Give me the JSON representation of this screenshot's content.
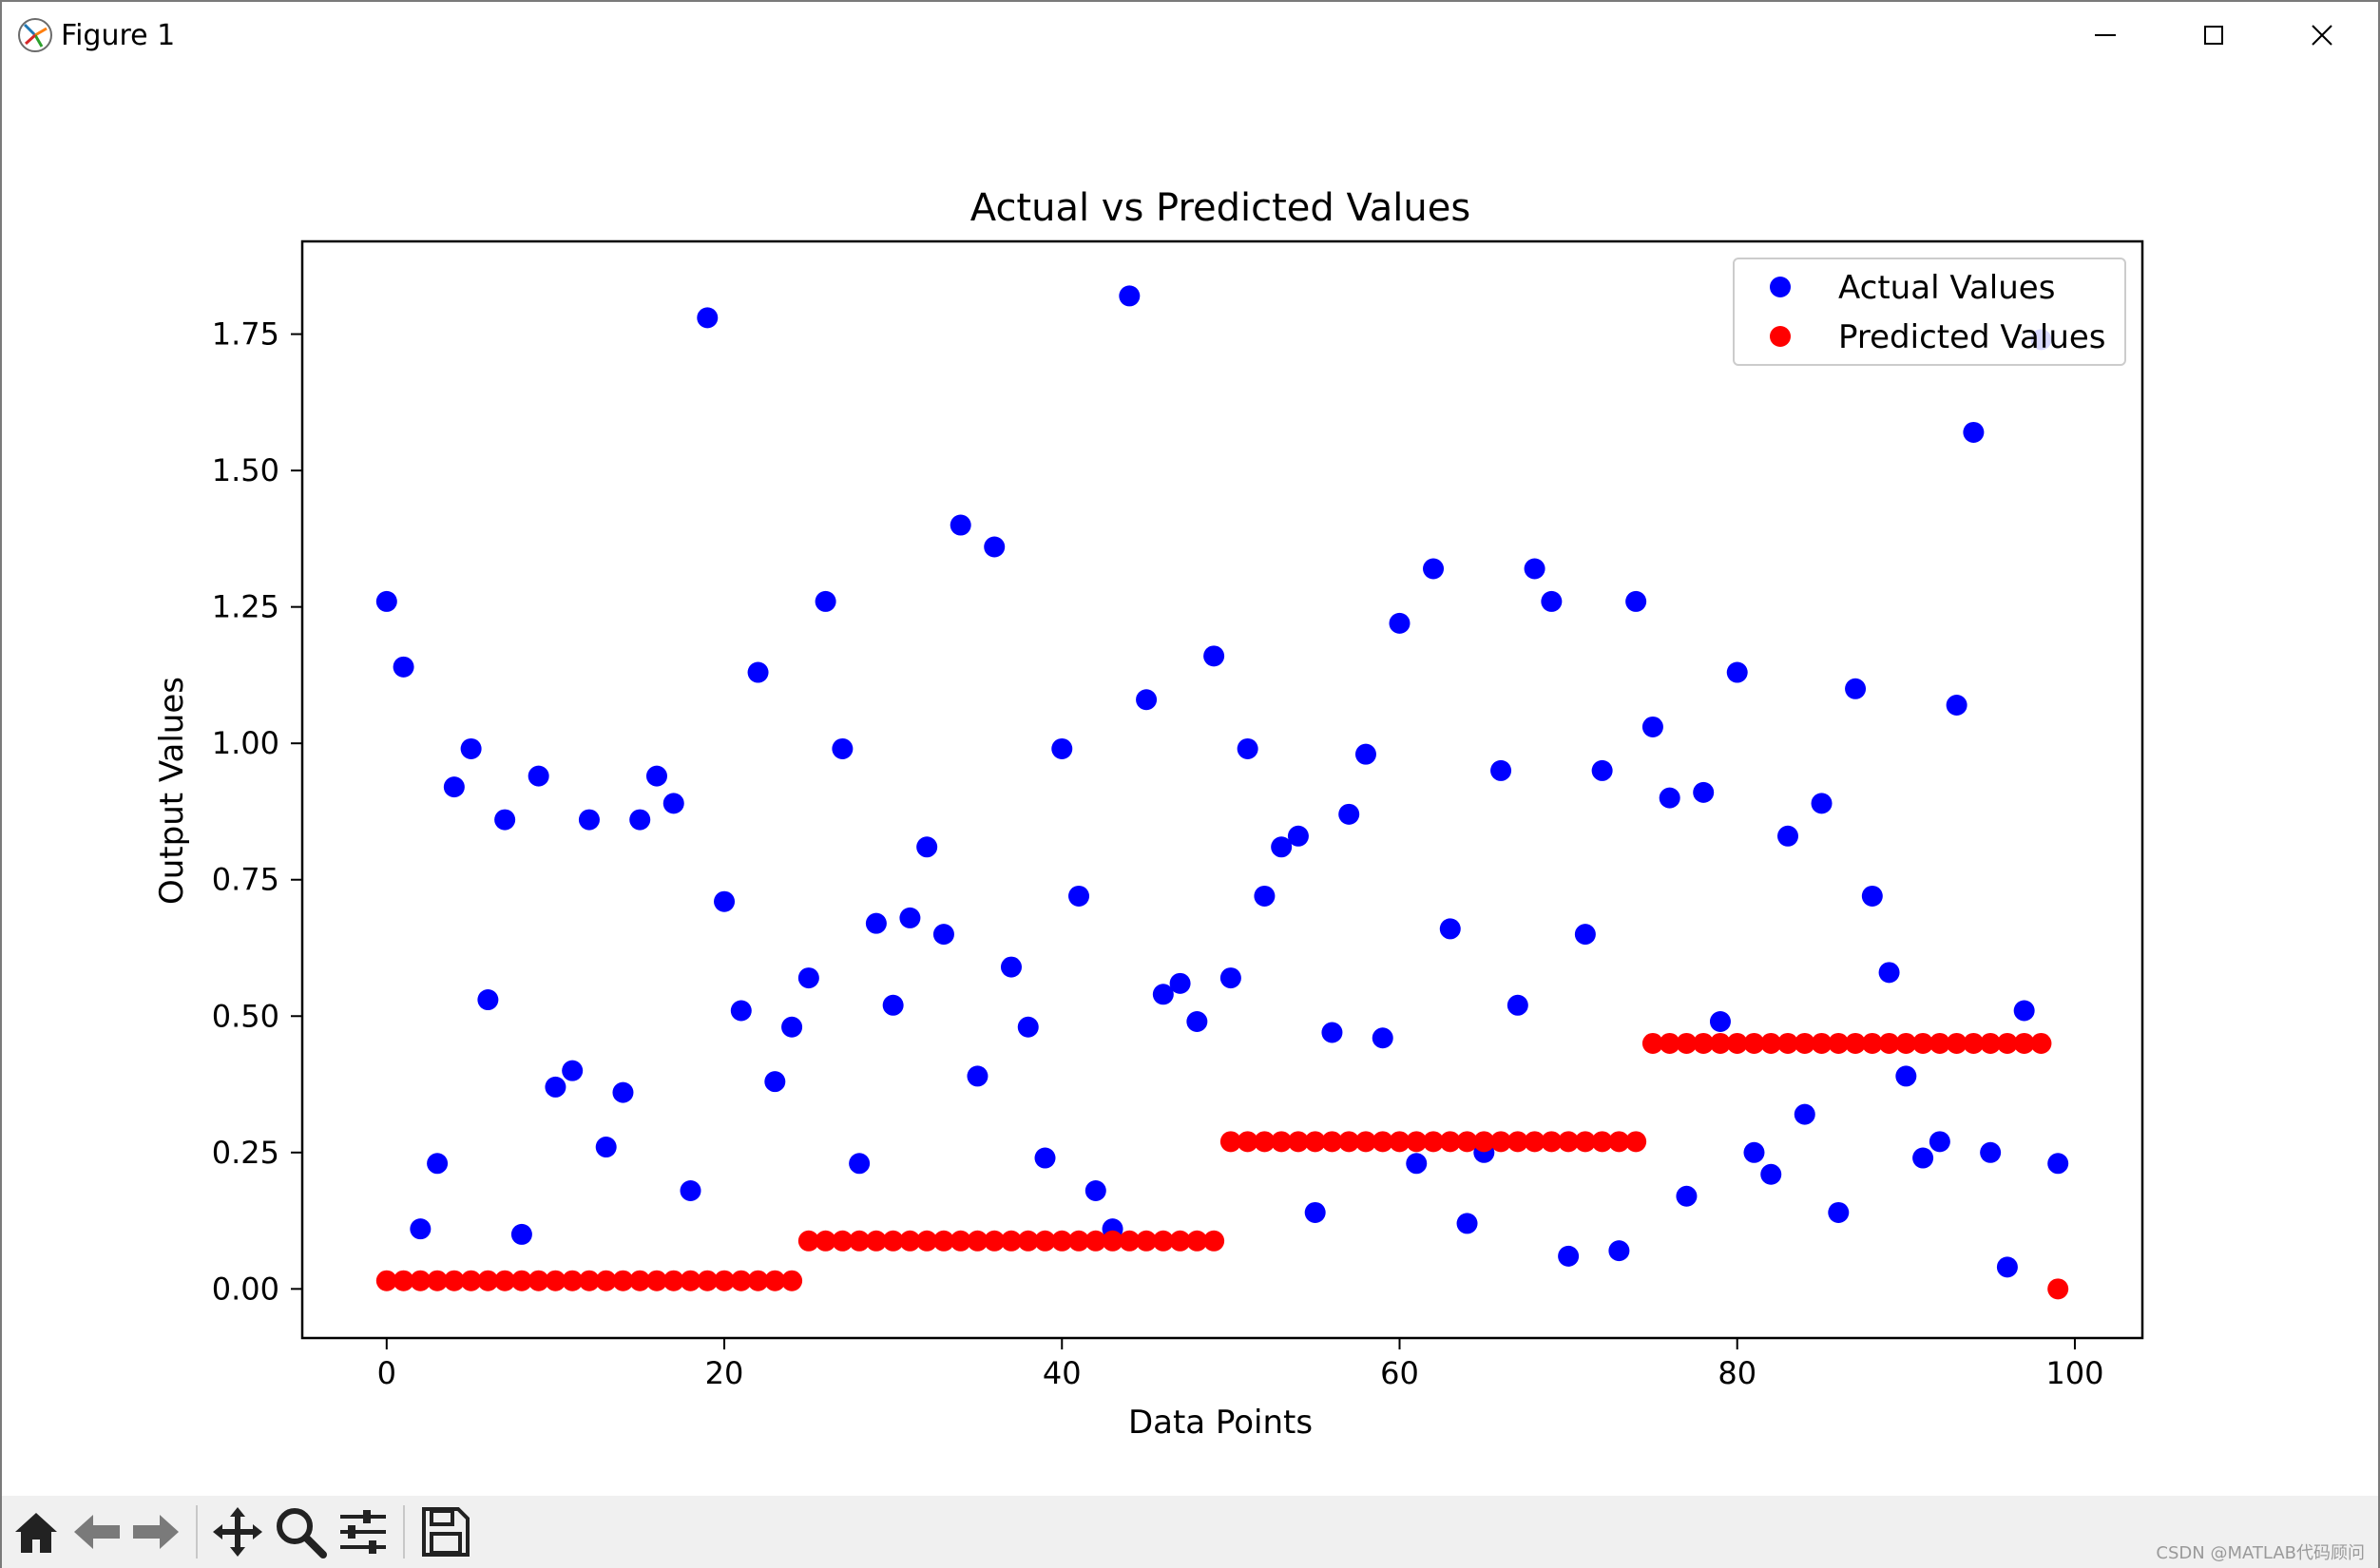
{
  "window": {
    "title": "Figure 1"
  },
  "toolbar": {
    "tools": [
      "home-icon",
      "back-arrow-icon",
      "forward-arrow-icon",
      "pan-icon",
      "zoom-icon",
      "configure-subplots-icon",
      "save-icon"
    ]
  },
  "watermark": "CSDN @MATLAB代码顾问",
  "chart_data": {
    "type": "scatter",
    "title": "Actual vs Predicted Values",
    "xlabel": "Data Points",
    "ylabel": "Output Values",
    "xlim": [
      -5,
      104
    ],
    "ylim": [
      -0.09,
      1.92
    ],
    "xticks": [
      0,
      20,
      40,
      60,
      80,
      100
    ],
    "xtick_labels": [
      "0",
      "20",
      "40",
      "60",
      "80",
      "100"
    ],
    "yticks": [
      0.0,
      0.25,
      0.5,
      0.75,
      1.0,
      1.25,
      1.5,
      1.75
    ],
    "ytick_labels": [
      "0.00",
      "0.25",
      "0.50",
      "0.75",
      "1.00",
      "1.25",
      "1.50",
      "1.75"
    ],
    "legend_position": "top-right",
    "grid": false,
    "series": [
      {
        "name": "Actual Values",
        "color": "#0000ff",
        "x": [
          0,
          1,
          2,
          3,
          4,
          5,
          6,
          7,
          8,
          9,
          10,
          11,
          12,
          13,
          14,
          15,
          16,
          17,
          18,
          19,
          20,
          21,
          22,
          23,
          24,
          25,
          26,
          27,
          28,
          29,
          30,
          31,
          32,
          33,
          34,
          35,
          36,
          37,
          38,
          39,
          40,
          41,
          42,
          43,
          44,
          45,
          46,
          47,
          48,
          49,
          50,
          51,
          52,
          53,
          54,
          55,
          56,
          57,
          58,
          59,
          60,
          61,
          62,
          63,
          64,
          65,
          66,
          67,
          68,
          69,
          70,
          71,
          72,
          73,
          74,
          75,
          76,
          77,
          78,
          79,
          80,
          81,
          82,
          83,
          84,
          85,
          86,
          87,
          88,
          89,
          90,
          91,
          92,
          93,
          94,
          95,
          96,
          97,
          98,
          99
        ],
        "y": [
          1.26,
          1.14,
          0.11,
          0.23,
          0.92,
          0.99,
          0.53,
          0.86,
          0.1,
          0.94,
          0.37,
          0.4,
          0.86,
          0.26,
          0.36,
          0.86,
          0.94,
          0.89,
          0.18,
          1.78,
          0.71,
          0.51,
          1.13,
          0.38,
          0.48,
          0.57,
          1.26,
          0.99,
          0.23,
          0.67,
          0.52,
          0.68,
          0.81,
          0.65,
          1.4,
          0.39,
          1.36,
          0.59,
          0.48,
          0.24,
          0.99,
          0.72,
          0.18,
          0.11,
          1.82,
          1.08,
          0.54,
          0.56,
          0.49,
          1.16,
          0.57,
          0.99,
          0.72,
          0.81,
          0.83,
          0.14,
          0.47,
          0.87,
          0.98,
          0.46,
          1.22,
          0.23,
          1.32,
          0.66,
          0.12,
          0.25,
          0.95,
          0.52,
          1.32,
          1.26,
          0.06,
          0.65,
          0.95,
          0.07,
          1.26,
          1.03,
          0.9,
          0.17,
          0.91,
          0.49,
          1.13,
          0.25,
          0.21,
          0.83,
          0.32,
          0.89,
          0.14,
          1.1,
          0.72,
          0.58,
          0.39,
          0.24,
          0.27,
          1.07,
          1.57,
          0.25,
          0.04,
          0.51,
          1.74,
          0.23
        ]
      },
      {
        "name": "Predicted Values",
        "color": "#ff0000",
        "x": [
          0,
          1,
          2,
          3,
          4,
          5,
          6,
          7,
          8,
          9,
          10,
          11,
          12,
          13,
          14,
          15,
          16,
          17,
          18,
          19,
          20,
          21,
          22,
          23,
          24,
          25,
          26,
          27,
          28,
          29,
          30,
          31,
          32,
          33,
          34,
          35,
          36,
          37,
          38,
          39,
          40,
          41,
          42,
          43,
          44,
          45,
          46,
          47,
          48,
          49,
          50,
          51,
          52,
          53,
          54,
          55,
          56,
          57,
          58,
          59,
          60,
          61,
          62,
          63,
          64,
          65,
          66,
          67,
          68,
          69,
          70,
          71,
          72,
          73,
          74,
          75,
          76,
          77,
          78,
          79,
          80,
          81,
          82,
          83,
          84,
          85,
          86,
          87,
          88,
          89,
          90,
          91,
          92,
          93,
          94,
          95,
          96,
          97,
          98,
          99
        ],
        "y": [
          0.015,
          0.015,
          0.015,
          0.015,
          0.015,
          0.015,
          0.015,
          0.015,
          0.015,
          0.015,
          0.015,
          0.015,
          0.015,
          0.015,
          0.015,
          0.015,
          0.015,
          0.015,
          0.015,
          0.015,
          0.015,
          0.015,
          0.015,
          0.015,
          0.015,
          0.088,
          0.088,
          0.088,
          0.088,
          0.088,
          0.088,
          0.088,
          0.088,
          0.088,
          0.088,
          0.088,
          0.088,
          0.088,
          0.088,
          0.088,
          0.088,
          0.088,
          0.088,
          0.088,
          0.088,
          0.088,
          0.088,
          0.088,
          0.088,
          0.088,
          0.27,
          0.27,
          0.27,
          0.27,
          0.27,
          0.27,
          0.27,
          0.27,
          0.27,
          0.27,
          0.27,
          0.27,
          0.27,
          0.27,
          0.27,
          0.27,
          0.27,
          0.27,
          0.27,
          0.27,
          0.27,
          0.27,
          0.27,
          0.27,
          0.27,
          0.45,
          0.45,
          0.45,
          0.45,
          0.45,
          0.45,
          0.45,
          0.45,
          0.45,
          0.45,
          0.45,
          0.45,
          0.45,
          0.45,
          0.45,
          0.45,
          0.45,
          0.45,
          0.45,
          0.45,
          0.45,
          0.45,
          0.45,
          0.45,
          0.0
        ]
      }
    ]
  }
}
